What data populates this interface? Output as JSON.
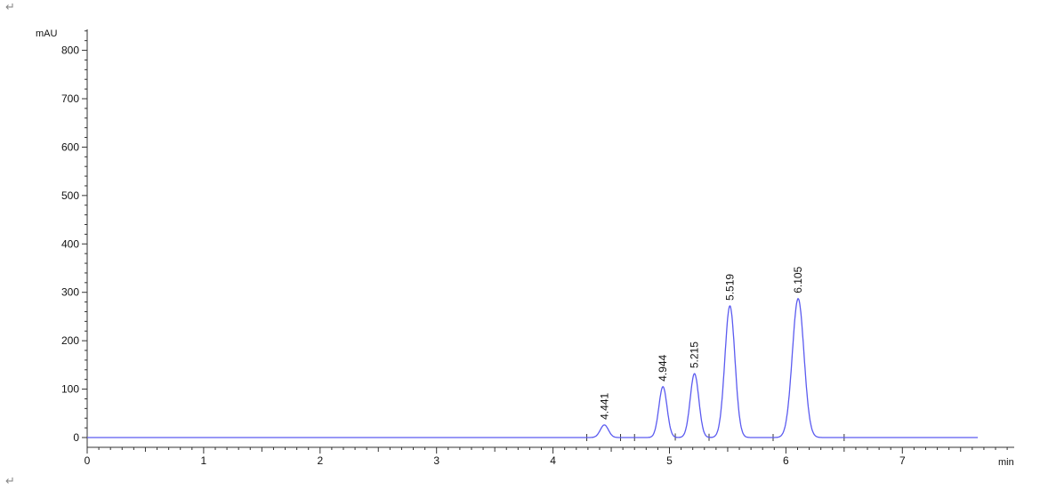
{
  "document": {
    "paragraph_mark_top": "↵",
    "paragraph_mark_bottom": "↵"
  },
  "chart_data": {
    "type": "line",
    "title": "",
    "xlabel": "min",
    "ylabel": "mAU",
    "xlim": [
      0,
      7.9
    ],
    "ylim": [
      0,
      850
    ],
    "x_ticks": [
      0,
      1,
      2,
      3,
      4,
      5,
      6,
      7
    ],
    "y_ticks": [
      0,
      100,
      200,
      300,
      400,
      500,
      600,
      700,
      800
    ],
    "grid": false,
    "line_color": "#5b5bf0",
    "trace_range": [
      0,
      7.65
    ],
    "peaks": [
      {
        "rt": 4.441,
        "label": "4.441",
        "height": 26,
        "sigma": 0.035
      },
      {
        "rt": 4.944,
        "label": "4.944",
        "height": 105,
        "sigma": 0.035
      },
      {
        "rt": 5.215,
        "label": "5.215",
        "height": 132,
        "sigma": 0.037
      },
      {
        "rt": 5.519,
        "label": "5.519",
        "height": 272,
        "sigma": 0.043
      },
      {
        "rt": 6.105,
        "label": "6.105",
        "height": 287,
        "sigma": 0.05
      }
    ],
    "integration_markers": [
      4.29,
      4.58,
      4.7,
      5.05,
      5.34,
      5.89,
      6.5
    ]
  }
}
